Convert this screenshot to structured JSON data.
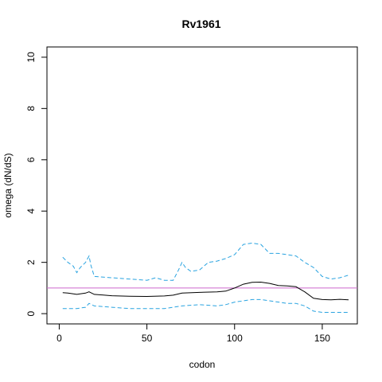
{
  "chart_data": {
    "type": "line",
    "title": "Rv1961",
    "xlabel": "codon",
    "ylabel": "omega (dN/dS)",
    "xlim": [
      -7,
      170
    ],
    "ylim": [
      -0.4,
      10.4
    ],
    "xticks": [
      0,
      50,
      100,
      150
    ],
    "yticks": [
      0,
      2,
      4,
      6,
      8,
      10
    ],
    "reference_line": {
      "y": 1,
      "color": "#cc66cc"
    },
    "series": [
      {
        "role": "estimate",
        "color": "#000000",
        "style": "solid",
        "x": [
          2,
          5,
          10,
          15,
          17,
          20,
          30,
          40,
          50,
          60,
          65,
          70,
          80,
          90,
          95,
          100,
          105,
          110,
          115,
          120,
          125,
          130,
          135,
          140,
          145,
          150,
          155,
          160,
          165
        ],
        "y": [
          0.82,
          0.8,
          0.75,
          0.8,
          0.85,
          0.75,
          0.7,
          0.68,
          0.67,
          0.69,
          0.72,
          0.8,
          0.83,
          0.85,
          0.88,
          1.0,
          1.15,
          1.22,
          1.23,
          1.18,
          1.1,
          1.08,
          1.05,
          0.85,
          0.6,
          0.55,
          0.54,
          0.56,
          0.54
        ]
      },
      {
        "role": "upper",
        "color": "#29a3e0",
        "style": "dashed",
        "x": [
          2,
          5,
          8,
          10,
          12,
          15,
          17,
          18,
          20,
          30,
          40,
          50,
          55,
          60,
          65,
          68,
          70,
          72,
          75,
          80,
          85,
          90,
          95,
          100,
          105,
          110,
          115,
          120,
          125,
          130,
          135,
          140,
          145,
          150,
          155,
          160,
          165
        ],
        "y": [
          2.2,
          2.0,
          1.85,
          1.6,
          1.8,
          2.0,
          2.25,
          1.9,
          1.45,
          1.4,
          1.35,
          1.3,
          1.4,
          1.3,
          1.3,
          1.7,
          2.0,
          1.8,
          1.65,
          1.7,
          2.0,
          2.05,
          2.15,
          2.3,
          2.7,
          2.75,
          2.7,
          2.35,
          2.35,
          2.3,
          2.25,
          2.0,
          1.8,
          1.45,
          1.35,
          1.4,
          1.5
        ]
      },
      {
        "role": "lower",
        "color": "#29a3e0",
        "style": "dashed",
        "x": [
          2,
          10,
          15,
          17,
          20,
          30,
          40,
          50,
          60,
          70,
          80,
          90,
          95,
          100,
          105,
          110,
          115,
          120,
          130,
          135,
          140,
          145,
          150,
          155,
          160,
          165
        ],
        "y": [
          0.2,
          0.2,
          0.25,
          0.4,
          0.3,
          0.25,
          0.2,
          0.2,
          0.2,
          0.3,
          0.35,
          0.3,
          0.35,
          0.45,
          0.5,
          0.55,
          0.55,
          0.5,
          0.4,
          0.4,
          0.3,
          0.1,
          0.05,
          0.05,
          0.05,
          0.05
        ]
      }
    ]
  }
}
